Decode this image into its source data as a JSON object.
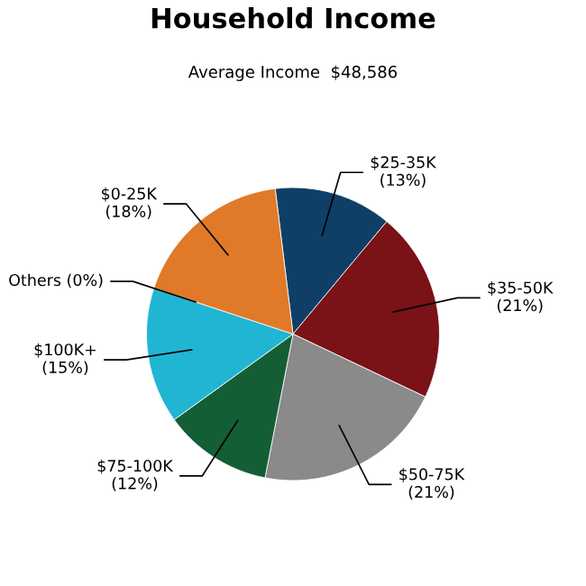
{
  "chart_data": {
    "type": "pie",
    "title": "Household Income",
    "subtitle": "Average Income  $48,586",
    "categories": [
      "$25-35K",
      "$35-50K",
      "$50-75K",
      "$75-100K",
      "$100K+",
      "Others",
      "$0-25K"
    ],
    "values": [
      13,
      21,
      21,
      12,
      15,
      0,
      18
    ],
    "value_labels": [
      "(13%)",
      "(21%)",
      "(21%)",
      "(12%)",
      "(15%)",
      "(0%)",
      "(18%)"
    ],
    "colors": [
      "#0f3f66",
      "#7a1218",
      "#8a8a8a",
      "#145e35",
      "#21b5d4",
      "#9b9b9b",
      "#e07a28"
    ],
    "legend": false
  }
}
